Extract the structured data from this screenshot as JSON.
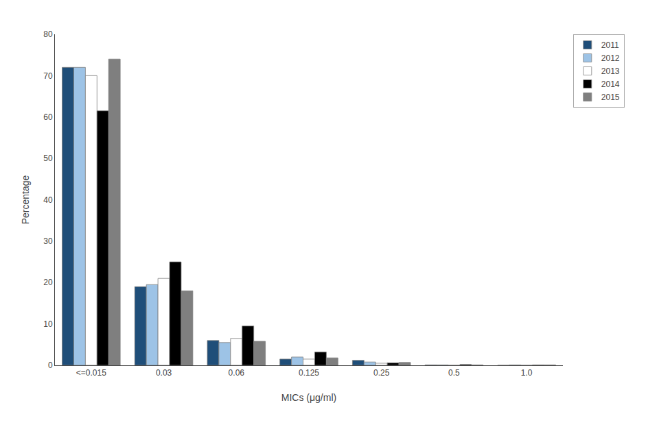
{
  "chart_data": {
    "type": "bar",
    "xlabel": "MICs (μg/ml)",
    "ylabel": "Percentage",
    "categories": [
      "<=0.015",
      "0.03",
      "0.06",
      "0.125",
      "0.25",
      "0.5",
      "1.0"
    ],
    "series": [
      {
        "name": "2011",
        "color": "#1f4e79",
        "values": [
          72,
          19,
          6,
          1.5,
          1.2,
          0.1,
          0.0
        ]
      },
      {
        "name": "2012",
        "color": "#9dc3e6",
        "values": [
          72,
          19.5,
          5.5,
          2.0,
          0.8,
          0.1,
          0.1
        ]
      },
      {
        "name": "2013",
        "color": "#ffffff",
        "values": [
          70,
          21,
          6.5,
          1.5,
          0.5,
          0.0,
          0.0
        ]
      },
      {
        "name": "2014",
        "color": "#000000",
        "values": [
          61.5,
          25,
          9.5,
          3.2,
          0.6,
          0.2,
          0.1
        ]
      },
      {
        "name": "2015",
        "color": "#7f7f7f",
        "values": [
          74,
          18,
          5.8,
          1.8,
          0.7,
          0.1,
          0.1
        ]
      }
    ],
    "ylim": [
      0,
      80
    ],
    "yticks": [
      0,
      10,
      20,
      30,
      40,
      50,
      60,
      70,
      80
    ],
    "grid": false,
    "legend": "upper right"
  }
}
